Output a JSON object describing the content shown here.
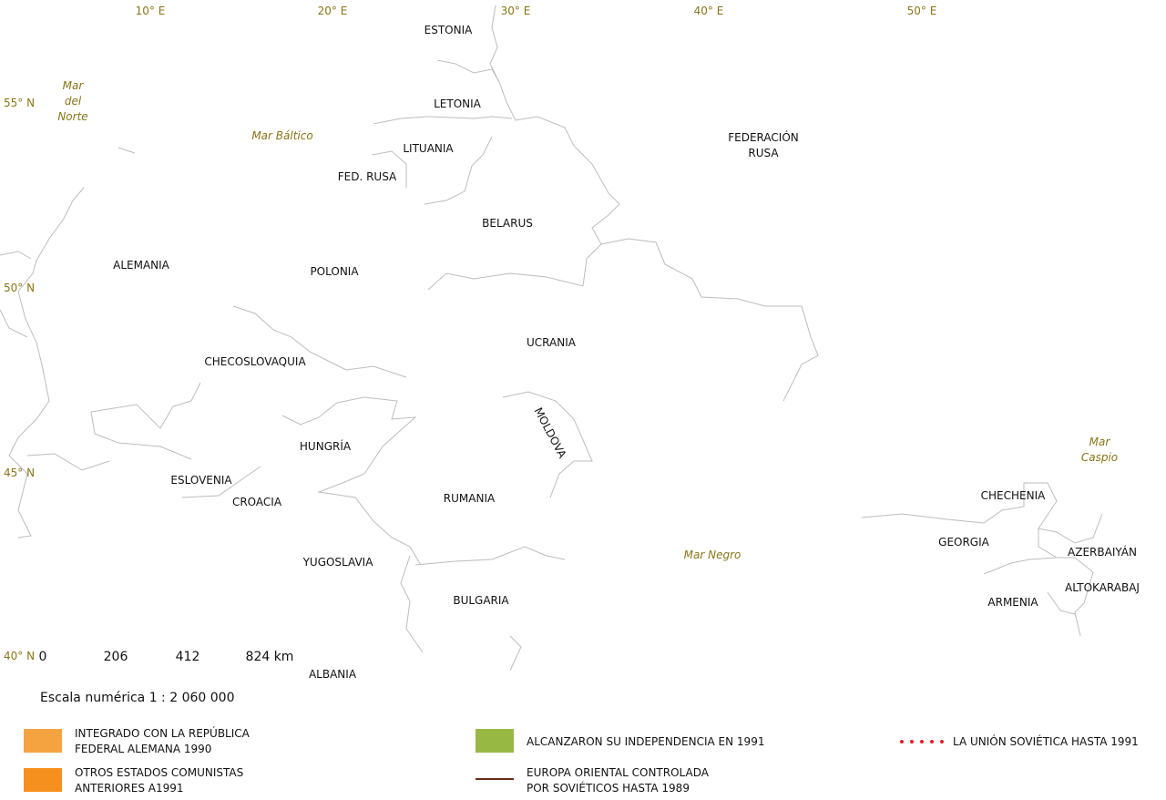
{
  "lon_labels": [
    "10° E",
    "20° E",
    "30° E",
    "40° E",
    "50° E"
  ],
  "lat_labels": [
    "55° N",
    "50° N",
    "45° N",
    "40° N"
  ],
  "seas": [
    {
      "lines": [
        "Mar",
        "del",
        "Norte"
      ]
    },
    {
      "lines": [
        "Mar Báltico"
      ]
    },
    {
      "lines": [
        "Mar Negro"
      ]
    },
    {
      "lines": [
        "Mar",
        "Caspio"
      ]
    }
  ],
  "countries": [
    {
      "lines": [
        "ESTONIA"
      ]
    },
    {
      "lines": [
        "LETONIA"
      ]
    },
    {
      "lines": [
        "LITUANIA"
      ]
    },
    {
      "lines": [
        "FED. RUSA"
      ]
    },
    {
      "lines": [
        "FEDERACIÓN",
        "RUSA"
      ]
    },
    {
      "lines": [
        "BELARUS"
      ]
    },
    {
      "lines": [
        "ALEMANIA"
      ]
    },
    {
      "lines": [
        "POLONIA"
      ]
    },
    {
      "lines": [
        "UCRANIA"
      ]
    },
    {
      "lines": [
        "CHECOSLOVAQUIA"
      ]
    },
    {
      "lines": [
        "MOLDOVA"
      ]
    },
    {
      "lines": [
        "HUNGRÍA"
      ]
    },
    {
      "lines": [
        "ESLOVENIA"
      ]
    },
    {
      "lines": [
        "CROACIA"
      ]
    },
    {
      "lines": [
        "RUMANIA"
      ]
    },
    {
      "lines": [
        "YUGOSLAVIA"
      ]
    },
    {
      "lines": [
        "BULGARIA"
      ]
    },
    {
      "lines": [
        "ALBANIA"
      ]
    },
    {
      "lines": [
        "CHECHENIA"
      ]
    },
    {
      "lines": [
        "GEORGIA"
      ]
    },
    {
      "lines": [
        "AZERBAIYÁN"
      ]
    },
    {
      "lines": [
        "ALTOKARABAJ"
      ]
    },
    {
      "lines": [
        "ARMENIA"
      ]
    }
  ],
  "scale": {
    "ticks": [
      "0",
      "206",
      "412",
      "824 km"
    ],
    "text": "Escala numérica 1 : 2 060 000"
  },
  "legend": [
    {
      "symbol": "swatch",
      "color": "#f4a340",
      "lines": [
        "INTEGRADO CON LA REPÚBLICA",
        "FEDERAL ALEMANA 1990"
      ]
    },
    {
      "symbol": "swatch",
      "color": "#f5901e",
      "lines": [
        "OTROS ESTADOS COMUNISTAS",
        "ANTERIORES A1991"
      ]
    },
    {
      "symbol": "swatch",
      "color": "#98b844",
      "lines": [
        "ALCANZARON SU INDEPENDENCIA EN 1991"
      ]
    },
    {
      "symbol": "line",
      "color": "#6b2a1a",
      "lines": [
        "EUROPA ORIENTAL CONTROLADA",
        "POR SOVIÉTICOS HASTA 1989"
      ]
    },
    {
      "symbol": "dots",
      "color": "#e3202a",
      "lines": [
        "LA UNIÓN SOVIÉTICA HASTA 1991"
      ]
    }
  ]
}
